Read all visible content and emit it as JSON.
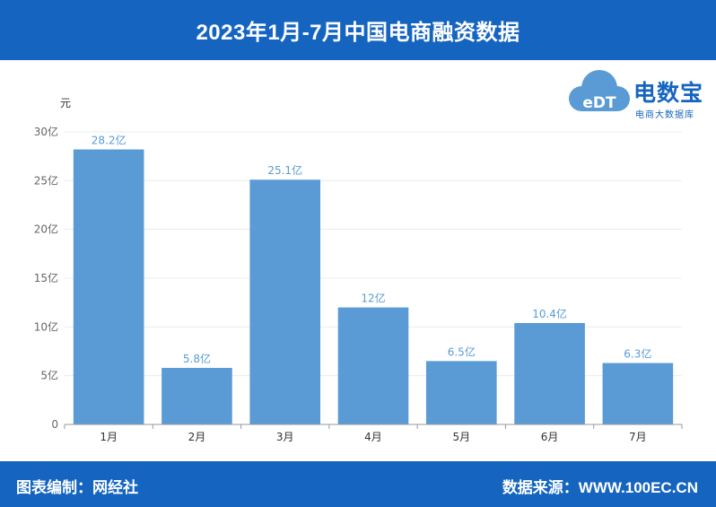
{
  "header": {
    "title": "2023年1月-7月中国电商融资数据"
  },
  "footer": {
    "left": "图表编制：网经社",
    "right": "数据来源：WWW.100EC.CN"
  },
  "logo": {
    "brand": "电数宝",
    "sub": "电商大数据库",
    "mark": "eDT"
  },
  "colors": {
    "header_bg": "#1565c0",
    "bar": "#5b9bd5",
    "label": "#5b9bd5"
  },
  "chart_data": {
    "type": "bar",
    "ylabel": "元",
    "categories": [
      "1月",
      "2月",
      "3月",
      "4月",
      "5月",
      "6月",
      "7月"
    ],
    "values": [
      28.2,
      5.8,
      25.1,
      12,
      6.5,
      10.4,
      6.3
    ],
    "data_labels": [
      "28.2亿",
      "5.8亿",
      "25.1亿",
      "12亿",
      "6.5亿",
      "10.4亿",
      "6.3亿"
    ],
    "yticks": [
      0,
      5,
      10,
      15,
      20,
      25,
      30
    ],
    "ytick_labels": [
      "0",
      "5亿",
      "10亿",
      "15亿",
      "20亿",
      "25亿",
      "30亿"
    ],
    "ylim": [
      0,
      30
    ],
    "grid": true
  }
}
